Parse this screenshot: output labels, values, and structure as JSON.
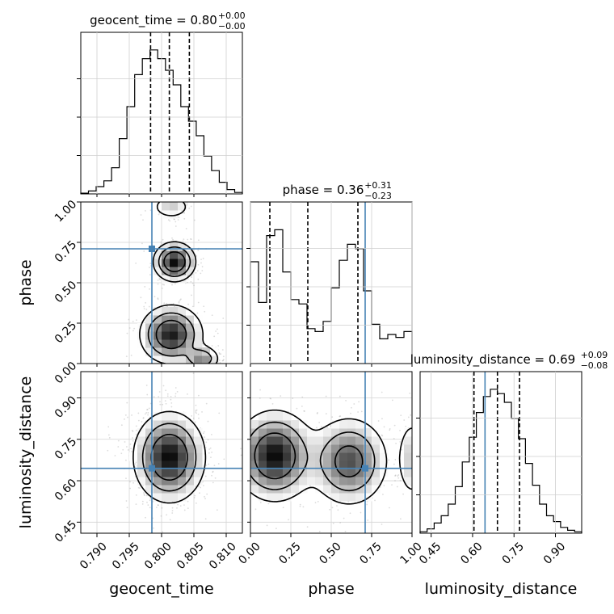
{
  "chart_data": {
    "type": "corner",
    "truth_color": "#4682b4",
    "parameters": [
      "geocent_time",
      "phase",
      "luminosity_distance"
    ],
    "axis_labels": {
      "geocent_time": "geocent_time",
      "phase": "phase",
      "luminosity_distance": "luminosity_distance"
    },
    "truths": {
      "geocent_time": 0.7985,
      "phase": 0.71,
      "luminosity_distance": 0.645
    },
    "titles": {
      "geocent_time": {
        "prefix": "geocent_time = ",
        "median": "0.80",
        "upper": "+0.00",
        "lower": "−0.00"
      },
      "phase": {
        "prefix": "phase = ",
        "median": "0.36",
        "upper": "+0.31",
        "lower": "−0.23"
      },
      "luminosity_distance": {
        "prefix": "luminosity_distance = ",
        "median": "0.69",
        "upper": "+0.09",
        "lower": "−0.08"
      }
    },
    "ranges": {
      "geocent_time": [
        0.7875,
        0.8125
      ],
      "phase": [
        0.0,
        1.0
      ],
      "luminosity_distance": [
        0.41,
        0.995
      ]
    },
    "ticks": {
      "geocent_time": [
        "0.790",
        "0.795",
        "0.800",
        "0.805",
        "0.810"
      ],
      "phase": [
        "0.00",
        "0.25",
        "0.50",
        "0.75",
        "1.00"
      ],
      "luminosity_distance": [
        "0.45",
        "0.60",
        "0.75",
        "0.90"
      ]
    },
    "quantiles": {
      "geocent_time": [
        0.7983,
        0.8012,
        0.8043
      ],
      "phase": [
        0.12,
        0.355,
        0.665
      ],
      "luminosity_distance": [
        0.605,
        0.69,
        0.77
      ]
    },
    "histograms": {
      "geocent_time": [
        0.005,
        0.02,
        0.05,
        0.09,
        0.18,
        0.38,
        0.6,
        0.82,
        0.93,
        0.99,
        0.93,
        0.85,
        0.75,
        0.6,
        0.5,
        0.4,
        0.26,
        0.16,
        0.08,
        0.03,
        0.01
      ],
      "phase": [
        0.7,
        0.42,
        0.88,
        0.92,
        0.63,
        0.44,
        0.41,
        0.24,
        0.22,
        0.29,
        0.52,
        0.71,
        0.82,
        0.79,
        0.5,
        0.27,
        0.17,
        0.2,
        0.18,
        0.22
      ],
      "luminosity_distance": [
        0.01,
        0.03,
        0.07,
        0.12,
        0.2,
        0.32,
        0.49,
        0.66,
        0.83,
        0.94,
        0.99,
        0.96,
        0.9,
        0.79,
        0.65,
        0.48,
        0.33,
        0.2,
        0.12,
        0.08,
        0.04,
        0.02,
        0.01
      ]
    },
    "density_modes": {
      "geocent_time|phase": [
        [
          0.802,
          0.63,
          0.0016,
          0.06,
          1.0
        ],
        [
          0.8015,
          0.18,
          0.0024,
          0.09,
          0.95
        ],
        [
          0.8062,
          0.03,
          0.0014,
          0.04,
          0.55
        ],
        [
          0.8015,
          0.97,
          0.0016,
          0.04,
          0.3
        ]
      ],
      "geocent_time|luminosity_distance": [
        [
          0.8012,
          0.685,
          0.0027,
          0.08,
          1.0
        ]
      ],
      "phase|luminosity_distance": [
        [
          0.15,
          0.69,
          0.12,
          0.08,
          1.0
        ],
        [
          0.61,
          0.67,
          0.12,
          0.08,
          0.75
        ],
        [
          1.0,
          0.68,
          0.05,
          0.08,
          0.3
        ]
      ]
    }
  }
}
